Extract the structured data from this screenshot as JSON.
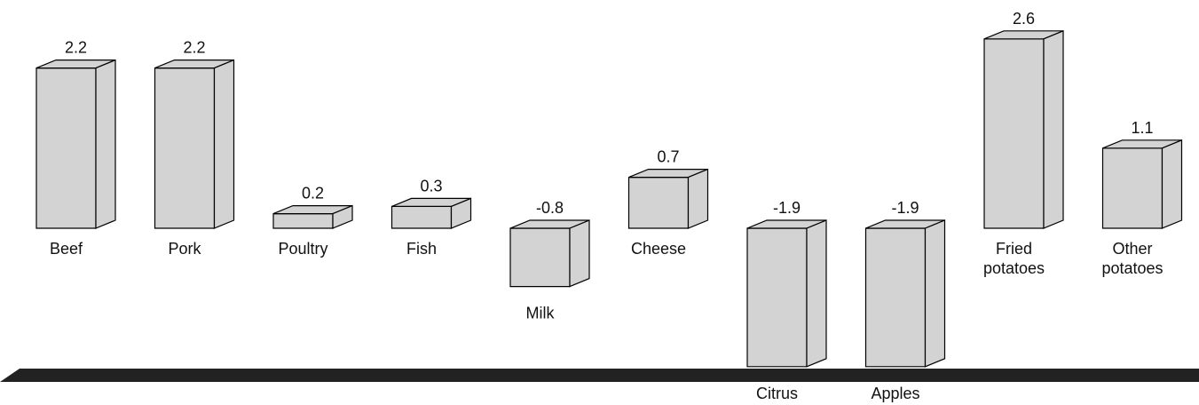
{
  "chart_data": {
    "type": "bar",
    "categories": [
      "Beef",
      "Pork",
      "Poultry",
      "Fish",
      "Milk",
      "Cheese",
      "Citrus",
      "Apples",
      "Fried potatoes",
      "Other potatoes"
    ],
    "values": [
      2.2,
      2.2,
      0.2,
      0.3,
      -0.8,
      0.7,
      -1.9,
      -1.9,
      2.6,
      1.1
    ],
    "color": "#d3d3d3"
  }
}
